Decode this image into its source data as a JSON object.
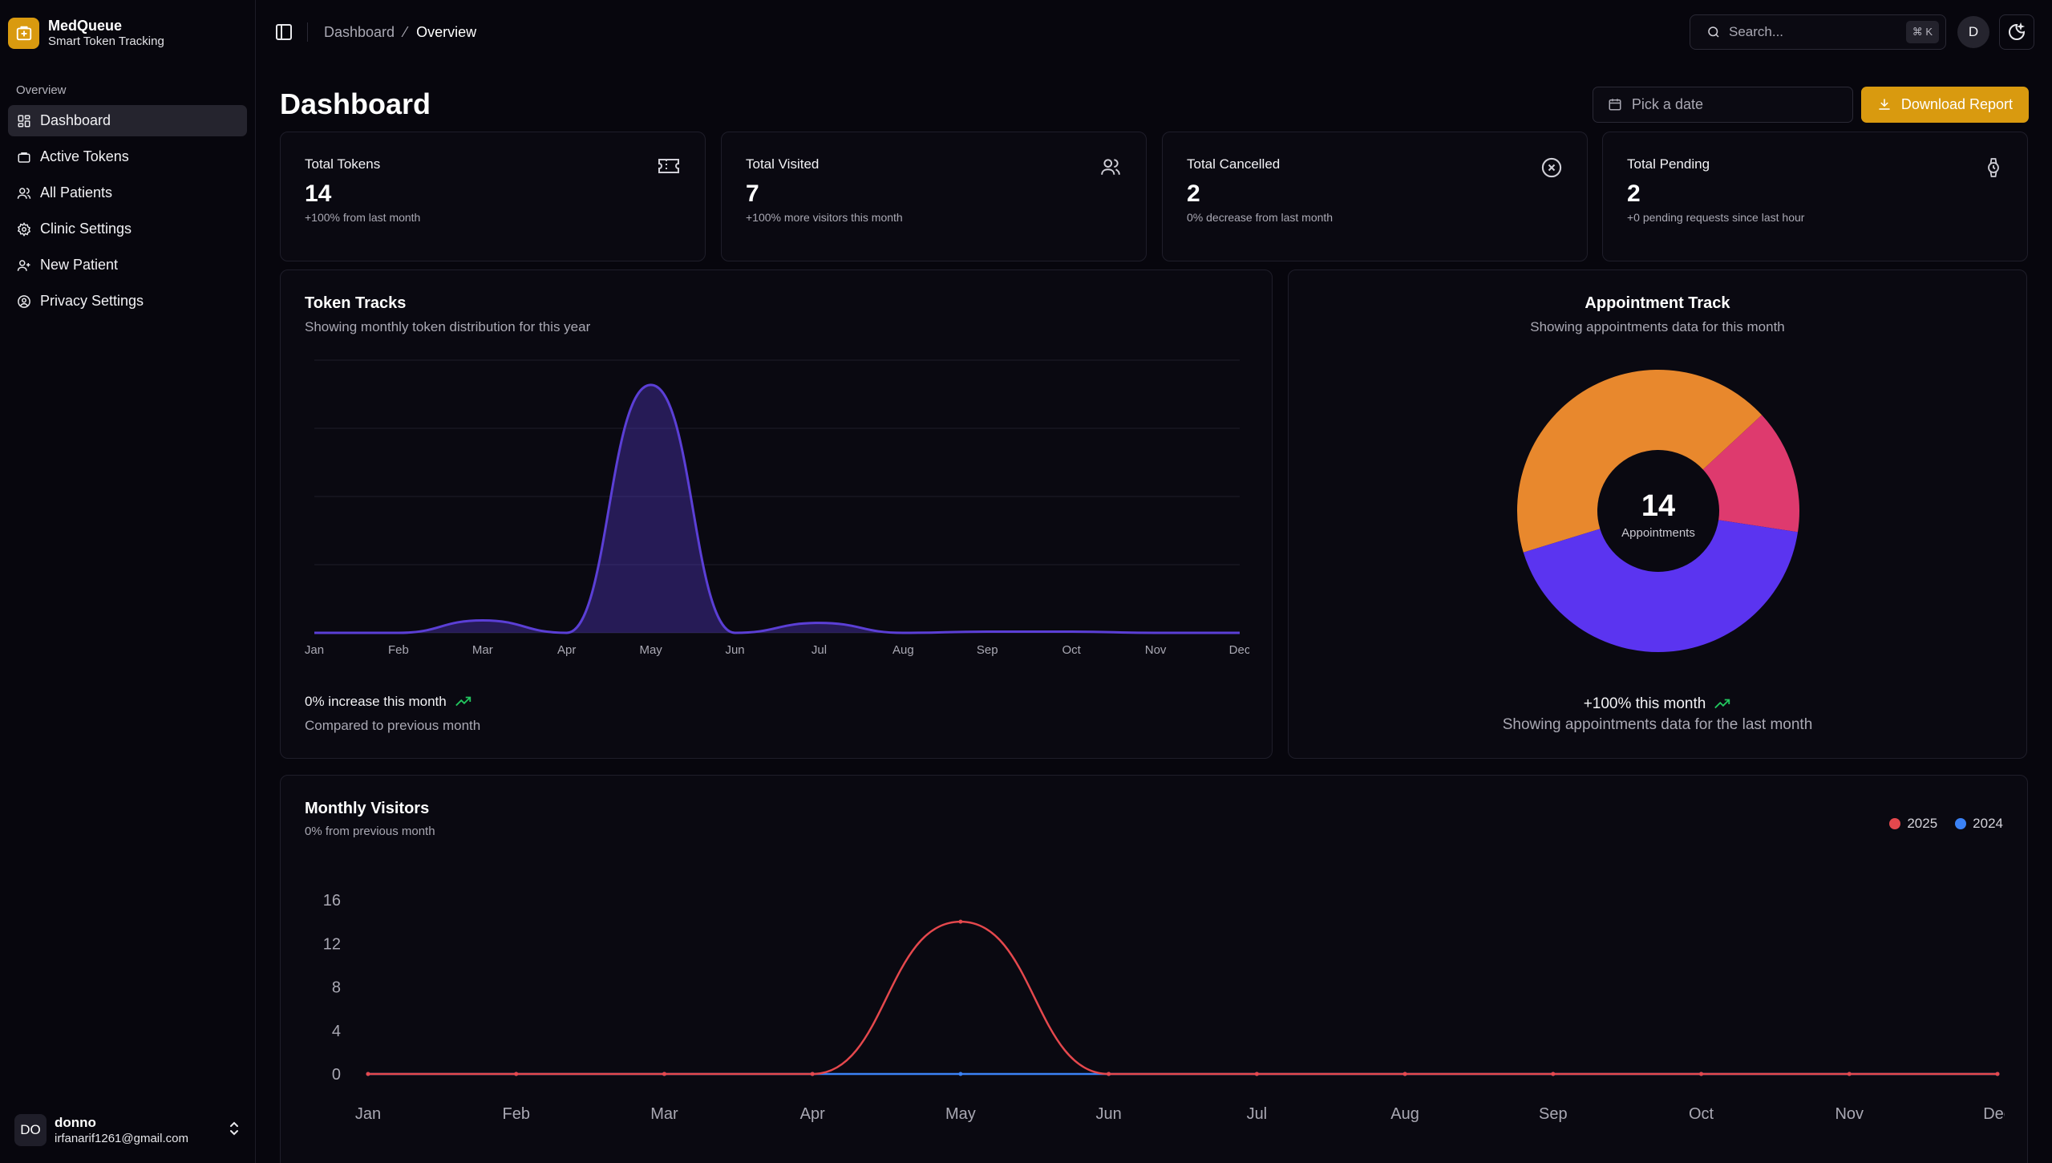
{
  "brand": {
    "name": "MedQueue",
    "tagline": "Smart Token Tracking"
  },
  "sidebar": {
    "group_label": "Overview",
    "items": [
      {
        "label": "Dashboard",
        "icon": "dashboard-icon",
        "active": true
      },
      {
        "label": "Active Tokens",
        "icon": "briefcase-icon"
      },
      {
        "label": "All Patients",
        "icon": "users-icon"
      },
      {
        "label": "Clinic Settings",
        "icon": "gear-icon"
      },
      {
        "label": "New Patient",
        "icon": "user-plus-icon"
      },
      {
        "label": "Privacy Settings",
        "icon": "user-circle-icon"
      }
    ],
    "user": {
      "initials": "DO",
      "name": "donno",
      "email": "irfanarif1261@gmail.com"
    }
  },
  "topbar": {
    "breadcrumb": [
      "Dashboard",
      "Overview"
    ],
    "search_placeholder": "Search...",
    "shortcut": "⌘ K",
    "avatar": "D"
  },
  "page": {
    "title": "Dashboard",
    "date_placeholder": "Pick a date",
    "download_label": "Download Report"
  },
  "stats": [
    {
      "title": "Total Tokens",
      "value": "14",
      "note": "+100% from last month",
      "icon": "ticket-icon"
    },
    {
      "title": "Total Visited",
      "value": "7",
      "note": "+100% more visitors this month",
      "icon": "users-icon"
    },
    {
      "title": "Total Cancelled",
      "value": "2",
      "note": "0% decrease from last month",
      "icon": "x-circle-icon"
    },
    {
      "title": "Total Pending",
      "value": "2",
      "note": "+0 pending requests since last hour",
      "icon": "watch-icon"
    }
  ],
  "token_tracks": {
    "title": "Token Tracks",
    "subtitle": "Showing monthly token distribution for this year",
    "footer_trend": "0% increase this month",
    "footer_note": "Compared to previous month"
  },
  "appointment_track": {
    "title": "Appointment Track",
    "subtitle": "Showing appointments data for this month",
    "center_value": "14",
    "center_label": "Appointments",
    "footer_trend": "+100% this month",
    "footer_note": "Showing appointments data for the last month"
  },
  "monthly_visitors": {
    "title": "Monthly Visitors",
    "subtitle": "0% from previous month",
    "legend": [
      {
        "name": "2025",
        "color": "#e5484d"
      },
      {
        "name": "2024",
        "color": "#3b82f6"
      }
    ]
  },
  "chart_data": [
    {
      "type": "area",
      "categories": [
        "Jan",
        "Feb",
        "Mar",
        "Apr",
        "May",
        "Jun",
        "Jul",
        "Aug",
        "Sep",
        "Oct",
        "Nov",
        "Dec"
      ],
      "series": [
        {
          "values": [
            0,
            0,
            0.5,
            0,
            10,
            0,
            0.4,
            0,
            0.05,
            0.05,
            0,
            0
          ]
        }
      ],
      "ylim": [
        0,
        11
      ],
      "grid": true,
      "color": "#5b3fd6"
    },
    {
      "type": "pie",
      "donut": true,
      "slices": [
        {
          "value": 6,
          "color": "#e8882d"
        },
        {
          "value": 2,
          "color": "#de3a6e"
        },
        {
          "value": 6,
          "color": "#5b34f0"
        }
      ]
    },
    {
      "type": "line",
      "categories": [
        "Jan",
        "Feb",
        "Mar",
        "Apr",
        "May",
        "Jun",
        "Jul",
        "Aug",
        "Sep",
        "Oct",
        "Nov",
        "Dec"
      ],
      "yticks": [
        0,
        4,
        8,
        12,
        16
      ],
      "ylim": [
        0,
        16
      ],
      "series": [
        {
          "name": "2025",
          "values": [
            0,
            0,
            0,
            0,
            14,
            0,
            0,
            0,
            0,
            0,
            0,
            0
          ],
          "color": "#e5484d"
        },
        {
          "name": "2024",
          "values": [
            0,
            0,
            0,
            0,
            0,
            0,
            0,
            0,
            0,
            0,
            0,
            0
          ],
          "color": "#3b82f6"
        }
      ],
      "legend": "top-right"
    }
  ]
}
